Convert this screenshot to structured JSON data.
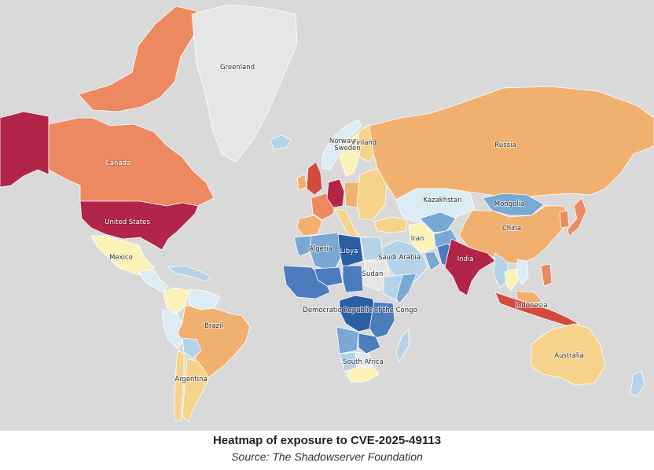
{
  "caption": {
    "title": "Heatmap of exposure to CVE-2025-49113",
    "source": "Source: The Shadowserver Foundation"
  },
  "colors": {
    "ocean": "#d9d9d9",
    "no_data": "#e6e6e6",
    "scale": [
      "#2c5ea6",
      "#4a7cbe",
      "#79a8d4",
      "#b4d3e8",
      "#dcecf4",
      "#fbf2b8",
      "#f6d38a",
      "#f2b070",
      "#ec8960",
      "#d44b3e",
      "#b22448"
    ]
  },
  "regions": [
    {
      "name": "Alaska",
      "level": 10
    },
    {
      "name": "Canada",
      "level": 8
    },
    {
      "name": "Canadian Arctic",
      "level": 8
    },
    {
      "name": "Greenland",
      "level": -1
    },
    {
      "name": "United States",
      "level": 10
    },
    {
      "name": "Mexico",
      "level": 5
    },
    {
      "name": "Central America",
      "level": 4
    },
    {
      "name": "Caribbean",
      "level": 3
    },
    {
      "name": "Colombia",
      "level": 5
    },
    {
      "name": "Venezuela",
      "level": 4
    },
    {
      "name": "Peru",
      "level": 4
    },
    {
      "name": "Brazil",
      "level": 7
    },
    {
      "name": "Bolivia",
      "level": 3
    },
    {
      "name": "Argentina",
      "level": 6
    },
    {
      "name": "Chile",
      "level": 6
    },
    {
      "name": "Iceland",
      "level": 3
    },
    {
      "name": "Norway",
      "level": 4
    },
    {
      "name": "Sweden",
      "level": 5
    },
    {
      "name": "Finland",
      "level": 6
    },
    {
      "name": "United Kingdom",
      "level": 9
    },
    {
      "name": "Ireland",
      "level": 7
    },
    {
      "name": "France",
      "level": 8
    },
    {
      "name": "Spain",
      "level": 7
    },
    {
      "name": "Germany",
      "level": 10
    },
    {
      "name": "Central Europe",
      "level": 7
    },
    {
      "name": "Italy",
      "level": 6
    },
    {
      "name": "Eastern Europe",
      "level": 6
    },
    {
      "name": "Russia",
      "level": 7
    },
    {
      "name": "Kazakhstan",
      "level": 4
    },
    {
      "name": "Mongolia",
      "level": 2
    },
    {
      "name": "China",
      "level": 7
    },
    {
      "name": "Korea",
      "level": 8
    },
    {
      "name": "Japan",
      "level": 8
    },
    {
      "name": "Turkey",
      "level": 6
    },
    {
      "name": "Iran",
      "level": 5
    },
    {
      "name": "Saudi Arabia",
      "level": 3
    },
    {
      "name": "Gulf States",
      "level": 2
    },
    {
      "name": "Central Asia",
      "level": 2
    },
    {
      "name": "Afghanistan",
      "level": 2
    },
    {
      "name": "Pakistan",
      "level": 1
    },
    {
      "name": "India",
      "level": 10
    },
    {
      "name": "Southeast Asia",
      "level": 3
    },
    {
      "name": "Thailand",
      "level": 5
    },
    {
      "name": "Vietnam",
      "level": 4
    },
    {
      "name": "Indonesia",
      "level": 9
    },
    {
      "name": "Philippines",
      "level": 8
    },
    {
      "name": "Malaysia",
      "level": 7
    },
    {
      "name": "Australia",
      "level": 6
    },
    {
      "name": "New Zealand",
      "level": 3
    },
    {
      "name": "Morocco",
      "level": 2
    },
    {
      "name": "Algeria",
      "level": 2
    },
    {
      "name": "Libya",
      "level": 0
    },
    {
      "name": "Egypt",
      "level": 3
    },
    {
      "name": "Sudan",
      "level": -1
    },
    {
      "name": "West Africa",
      "level": 1
    },
    {
      "name": "Niger",
      "level": 1
    },
    {
      "name": "Chad",
      "level": 1
    },
    {
      "name": "Ethiopia",
      "level": 3
    },
    {
      "name": "Somalia",
      "level": 2
    },
    {
      "name": "Democratic Republic of the Congo",
      "level": 0
    },
    {
      "name": "East Africa",
      "level": 1
    },
    {
      "name": "Angola",
      "level": 2
    },
    {
      "name": "Zambia",
      "level": 1
    },
    {
      "name": "Namibia",
      "level": 3
    },
    {
      "name": "Botswana",
      "level": 4
    },
    {
      "name": "South Africa",
      "level": 5
    },
    {
      "name": "Madagascar",
      "level": 3
    }
  ],
  "labels": [
    {
      "text": "Greenland",
      "light": false
    },
    {
      "text": "Canada",
      "light": true
    },
    {
      "text": "United States",
      "light": true
    },
    {
      "text": "Mexico",
      "light": false
    },
    {
      "text": "Brazil",
      "light": false
    },
    {
      "text": "Argentina",
      "light": false
    },
    {
      "text": "Norway",
      "light": false
    },
    {
      "text": "Sweden",
      "light": false
    },
    {
      "text": "Finland",
      "light": false
    },
    {
      "text": "Russia",
      "light": false
    },
    {
      "text": "Kazakhstan",
      "light": false
    },
    {
      "text": "Mongolia",
      "light": false
    },
    {
      "text": "China",
      "light": false
    },
    {
      "text": "Iran",
      "light": false
    },
    {
      "text": "Saudi Arabia",
      "light": false
    },
    {
      "text": "India",
      "light": true
    },
    {
      "text": "Indonesia",
      "light": false
    },
    {
      "text": "Australia",
      "light": false
    },
    {
      "text": "Algeria",
      "light": false
    },
    {
      "text": "Libya",
      "light": true
    },
    {
      "text": "Sudan",
      "light": false
    },
    {
      "text": "Democratic Republic of the Congo",
      "light": false
    },
    {
      "text": "South Africa",
      "light": false
    }
  ]
}
